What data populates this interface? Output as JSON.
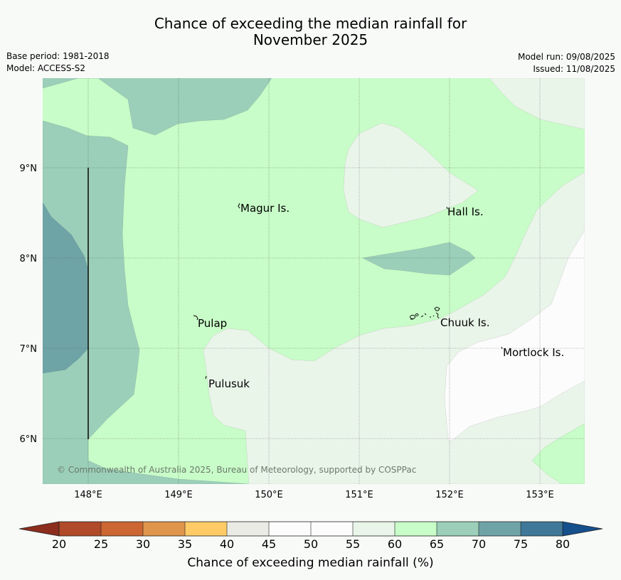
{
  "title": {
    "line1": "Chance of exceeding the median rainfall for",
    "line2": "November 2025"
  },
  "meta": {
    "base_period": "Base period: 1981-2018",
    "model": "Model: ACCESS-S2",
    "model_run": "Model run: 09/08/2025",
    "issued": "Issued: 11/08/2025"
  },
  "map": {
    "lat_labels": [
      "9°N",
      "8°N",
      "7°N",
      "6°N"
    ],
    "lon_labels": [
      "148°E",
      "149°E",
      "150°E",
      "151°E",
      "152°E",
      "153°E"
    ],
    "places": [
      "Magur Is.",
      "Hall Is.",
      "Pulap",
      "Chuuk Is.",
      "Mortlock Is.",
      "Pulusuk"
    ],
    "copyright": "© Commonwealth of Australia 2025, Bureau of Meteorology, supported by COSPPac"
  },
  "colorbar": {
    "ticks": [
      "20",
      "25",
      "30",
      "35",
      "40",
      "45",
      "50",
      "55",
      "60",
      "65",
      "70",
      "75",
      "80"
    ],
    "label": "Chance of exceeding median rainfall (%)",
    "colors": {
      "under": "#8c2d1e",
      "b20_25": "#b04a28",
      "b25_30": "#cc6633",
      "b30_35": "#e0954c",
      "b35_40": "#fecb66",
      "b40_45": "#ebebe6",
      "b45_50": "#fcfcfc",
      "b50_55": "#fcfcfc",
      "b55_60": "#eaf5ea",
      "b60_65": "#c8fcc8",
      "b65_70": "#9bcfb9",
      "b70_75": "#6fa4a7",
      "b75_80": "#3f7898",
      "over": "#154f8c"
    }
  }
}
